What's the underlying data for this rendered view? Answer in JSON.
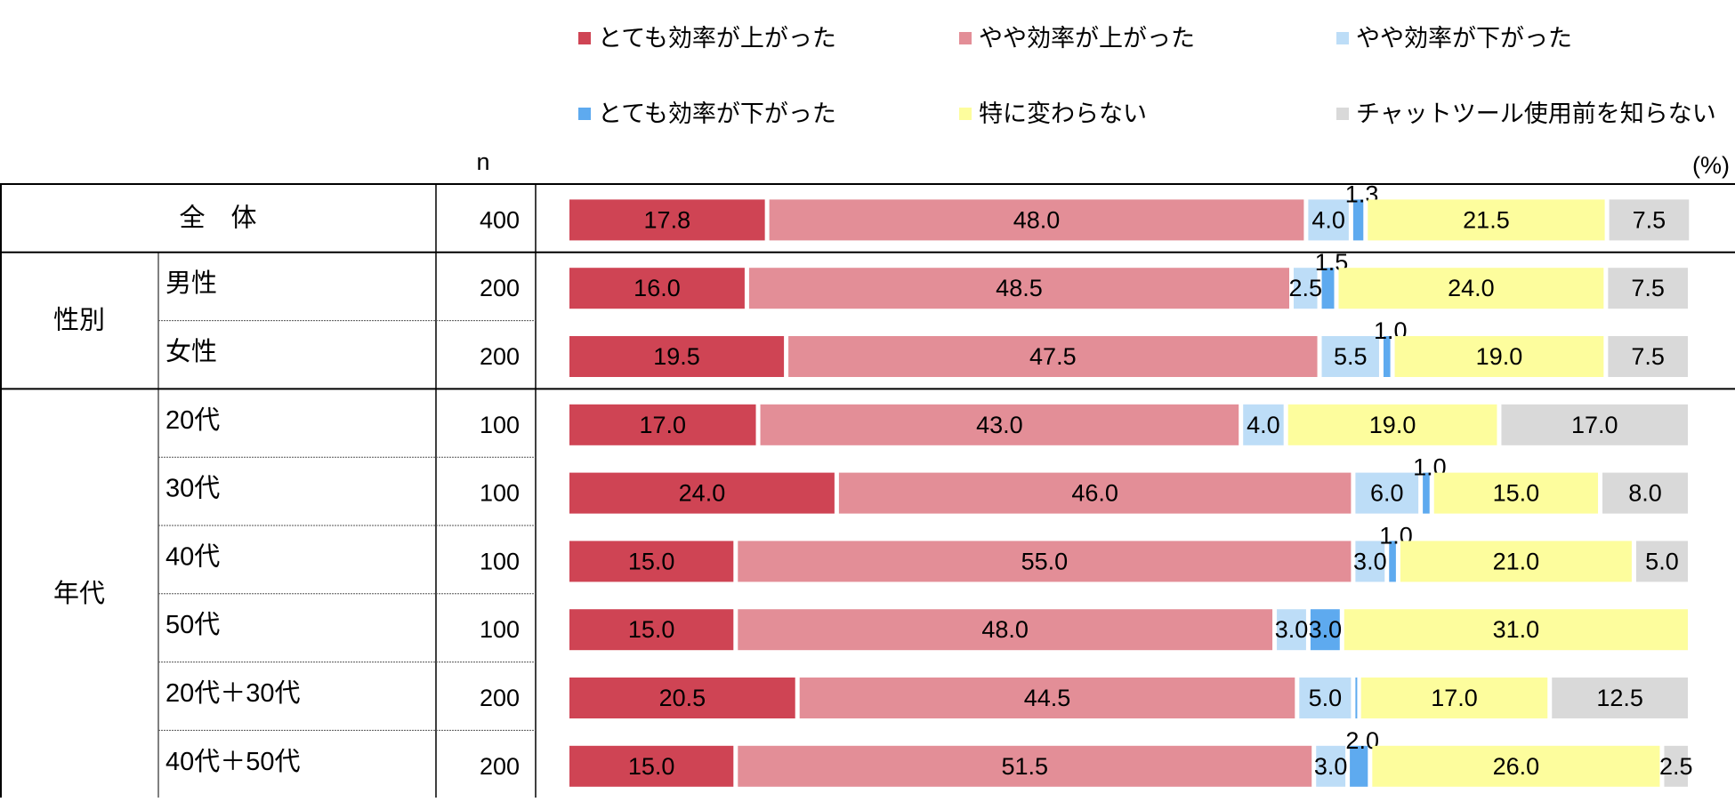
{
  "chart_data": {
    "type": "bar",
    "orientation": "horizontal",
    "stacked": true,
    "unit_label": "(%)",
    "n_header": "n",
    "legend_position": "top",
    "series": [
      {
        "name": "とても効率が上がった",
        "color": "#CF4454"
      },
      {
        "name": "やや効率が上がった",
        "color": "#E38E97"
      },
      {
        "name": "やや効率が下がった",
        "color": "#BDDDF7"
      },
      {
        "name": "とても効率が下がった",
        "color": "#5EAAEF"
      },
      {
        "name": "特に変わらない",
        "color": "#FDFD9D"
      },
      {
        "name": "チャットツール使用前を知らない",
        "color": "#D9D9D9"
      }
    ],
    "groups": [
      {
        "label": "全　体",
        "span": 1
      },
      {
        "label": "性別",
        "span": 2
      },
      {
        "label": "年代",
        "span": 6
      }
    ],
    "rows": [
      {
        "label": "",
        "n": "400",
        "values": [
          17.8,
          48.0,
          4.0,
          1.3,
          21.5,
          7.5
        ],
        "labels": [
          "17.8",
          "48.0",
          "4.0",
          "1.3",
          "21.5",
          "7.5"
        ],
        "above": [
          3
        ]
      },
      {
        "label": "男性",
        "n": "200",
        "values": [
          16.0,
          48.5,
          2.5,
          1.5,
          24.0,
          7.5
        ],
        "labels": [
          "16.0",
          "48.5",
          "2.5",
          "1.5",
          "24.0",
          "7.5"
        ],
        "above": [
          3
        ]
      },
      {
        "label": "女性",
        "n": "200",
        "values": [
          19.5,
          47.5,
          5.5,
          1.0,
          19.0,
          7.5
        ],
        "labels": [
          "19.5",
          "47.5",
          "5.5",
          "1.0",
          "19.0",
          "7.5"
        ],
        "above": [
          3
        ]
      },
      {
        "label": "20代",
        "n": "100",
        "values": [
          17.0,
          43.0,
          4.0,
          0.0,
          19.0,
          17.0
        ],
        "labels": [
          "17.0",
          "43.0",
          "4.0",
          "",
          "19.0",
          "17.0"
        ],
        "above": []
      },
      {
        "label": "30代",
        "n": "100",
        "values": [
          24.0,
          46.0,
          6.0,
          1.0,
          15.0,
          8.0
        ],
        "labels": [
          "24.0",
          "46.0",
          "6.0",
          "1.0",
          "15.0",
          "8.0"
        ],
        "above": [
          3
        ]
      },
      {
        "label": "40代",
        "n": "100",
        "values": [
          15.0,
          55.0,
          3.0,
          1.0,
          21.0,
          5.0
        ],
        "labels": [
          "15.0",
          "55.0",
          "3.0",
          "1.0",
          "21.0",
          "5.0"
        ],
        "above": [
          3
        ]
      },
      {
        "label": "50代",
        "n": "100",
        "values": [
          15.0,
          48.0,
          3.0,
          3.0,
          31.0,
          0.0
        ],
        "labels": [
          "15.0",
          "48.0",
          "3.0",
          "3.0",
          "31.0",
          ""
        ],
        "above": []
      },
      {
        "label": "20代＋30代",
        "n": "200",
        "values": [
          20.5,
          44.5,
          5.0,
          0.5,
          17.0,
          12.5
        ],
        "labels": [
          "20.5",
          "44.5",
          "5.0",
          "",
          "17.0",
          "12.5"
        ],
        "above": []
      },
      {
        "label": "40代＋50代",
        "n": "200",
        "values": [
          15.0,
          51.5,
          3.0,
          2.0,
          26.0,
          2.5
        ],
        "labels": [
          "15.0",
          "51.5",
          "3.0",
          "2.0",
          "26.0",
          "2.5"
        ],
        "above": [
          3
        ]
      }
    ],
    "xlim": [
      0,
      100
    ]
  }
}
